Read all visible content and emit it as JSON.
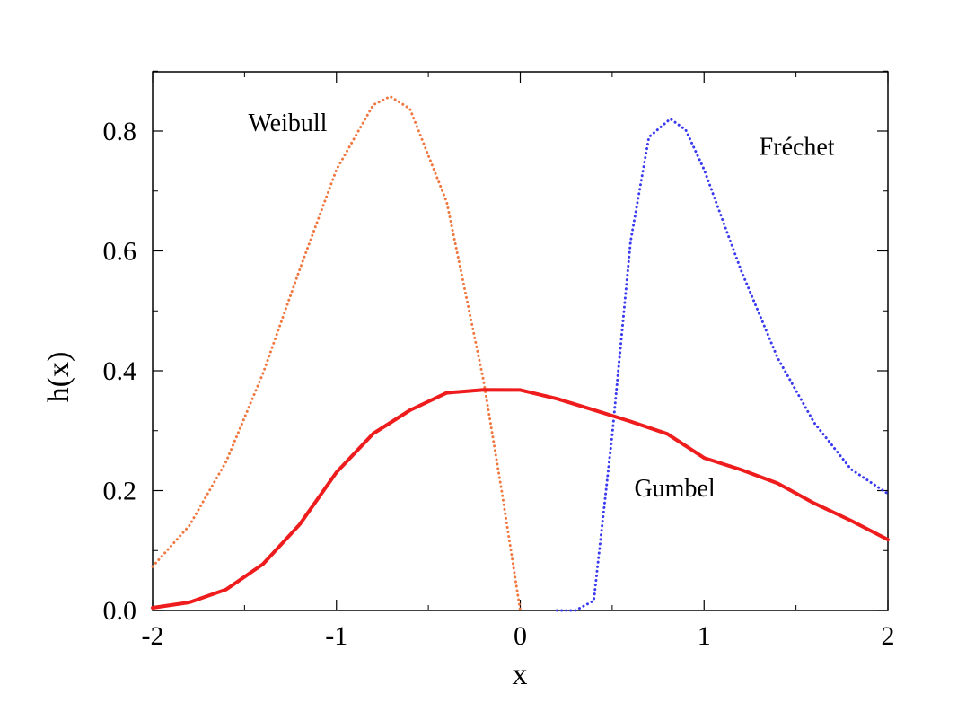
{
  "chart_data": {
    "type": "line",
    "xlabel": "x",
    "ylabel": "h(x)",
    "xlim": [
      -2,
      2
    ],
    "ylim": [
      0,
      0.9
    ],
    "xticks": [
      -2,
      -1,
      0,
      1,
      2
    ],
    "xtick_labels": [
      "-2",
      "-1",
      "0",
      "1",
      "2"
    ],
    "yticks": [
      0,
      0.2,
      0.4,
      0.6,
      0.8
    ],
    "ytick_labels": [
      "0.0",
      "0.2",
      "0.4",
      "0.6",
      "0.8"
    ],
    "grid": false,
    "series": [
      {
        "name": "Weibull",
        "style": "dotted",
        "color": "#f07840",
        "x": [
          -2.0,
          -1.8,
          -1.6,
          -1.4,
          -1.2,
          -1.0,
          -0.8,
          -0.7071,
          -0.6,
          -0.4,
          -0.2,
          -0.1,
          0.0
        ],
        "y": [
          0.0733,
          0.1416,
          0.2484,
          0.3955,
          0.5688,
          0.7358,
          0.8436,
          0.8578,
          0.8372,
          0.6817,
          0.3843,
          0.198,
          0.0
        ]
      },
      {
        "name": "Fréchet",
        "style": "dotted",
        "color": "#3a3af0",
        "x": [
          0.2,
          0.3,
          0.4,
          0.5,
          0.6,
          0.7,
          0.8165,
          0.9,
          1.0,
          1.2,
          1.4,
          1.6,
          1.8,
          2.0
        ],
        "y": [
          0.0,
          0.0,
          0.0163,
          0.2931,
          0.6161,
          0.79,
          0.8204,
          0.802,
          0.7358,
          0.5686,
          0.4215,
          0.3128,
          0.2355,
          0.1947
        ]
      },
      {
        "name": "Gumbel",
        "style": "solid",
        "color": "#ee1c1c",
        "x": [
          -2.0,
          -1.8,
          -1.6,
          -1.4,
          -1.2,
          -1.0,
          -0.8,
          -0.6,
          -0.4,
          -0.2,
          0.0,
          0.2,
          0.4,
          0.6,
          0.8,
          1.0,
          1.2,
          1.4,
          1.6,
          1.8,
          2.0
        ],
        "y": [
          0.0045,
          0.0135,
          0.035,
          0.0773,
          0.1435,
          0.2306,
          0.2952,
          0.3341,
          0.3632,
          0.3682,
          0.3679,
          0.3532,
          0.3345,
          0.3153,
          0.2947,
          0.2546,
          0.235,
          0.2122,
          0.1788,
          0.1498,
          0.1182
        ]
      }
    ],
    "annotations": [
      {
        "text": "Weibull",
        "x": -1.48,
        "y": 0.8
      },
      {
        "text": "Fréchet",
        "x": 1.3,
        "y": 0.76
      },
      {
        "text": "Gumbel",
        "x": 0.62,
        "y": 0.19
      }
    ]
  }
}
